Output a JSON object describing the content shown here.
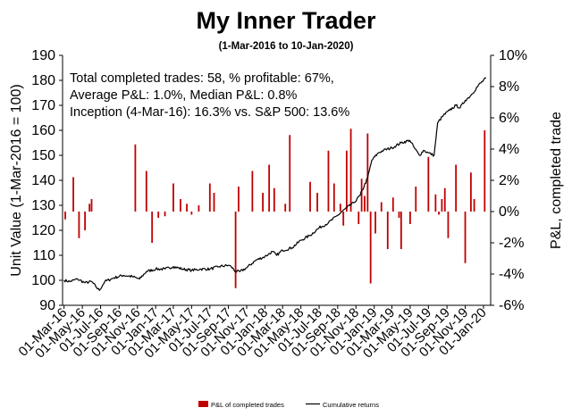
{
  "chart_data": {
    "type": "bar+line",
    "title": "My Inner Trader",
    "subtitle": "(1-Mar-2016 to 10-Jan-2020)",
    "ylabel_left": "Unit Value (1-Mar-2016 = 100)",
    "ylabel_right": "P&L, completed trade",
    "ylim_left": [
      90,
      190
    ],
    "ylim_right": [
      -6,
      10
    ],
    "yticks_left": [
      "90",
      "100",
      "110",
      "120",
      "130",
      "140",
      "150",
      "160",
      "170",
      "180",
      "190"
    ],
    "yticks_right": [
      "-6%",
      "-4%",
      "-2%",
      "0%",
      "2%",
      "4%",
      "6%",
      "8%",
      "10%"
    ],
    "xticks": [
      "01-Mar-16",
      "01-May-16",
      "01-Jul-16",
      "01-Sep-16",
      "01-Nov-16",
      "01-Jan-17",
      "01-Mar-17",
      "01-May-17",
      "01-Jul-17",
      "01-Sep-17",
      "01-Nov-17",
      "01-Jan-18",
      "01-Mar-18",
      "01-May-18",
      "01-Jul-18",
      "01-Sep-18",
      "01-Nov-18",
      "01-Jan-19",
      "01-Mar-19",
      "01-May-19",
      "01-Jul-19",
      "01-Sep-19",
      "01-Nov-19",
      "01-Jan-20"
    ],
    "annotations": [
      "Total completed trades: 58, % profitable: 67%,",
      "Average P&L: 1.0%, Median P&L: 0.8%",
      "Inception (4-Mar-16): 16.3% vs. S&P 500: 13.6%"
    ],
    "legend": {
      "placement": "bottom",
      "items": [
        "P&L of completed trades",
        "Cumulative returns"
      ]
    },
    "colors": {
      "bars": "#c00000",
      "line": "#000000"
    },
    "series": [
      {
        "name": "Cumulative returns",
        "type": "line",
        "points": [
          [
            "2016-03-01",
            100
          ],
          [
            "2016-03-20",
            99.5
          ],
          [
            "2016-04-15",
            100.5
          ],
          [
            "2016-05-10",
            99
          ],
          [
            "2016-06-01",
            99.5
          ],
          [
            "2016-06-15",
            97.5
          ],
          [
            "2016-06-27",
            96
          ],
          [
            "2016-07-15",
            99.5
          ],
          [
            "2016-08-15",
            101
          ],
          [
            "2016-09-15",
            102
          ],
          [
            "2016-10-15",
            101.5
          ],
          [
            "2016-11-08",
            100.5
          ],
          [
            "2016-12-01",
            103.5
          ],
          [
            "2017-01-01",
            104.5
          ],
          [
            "2017-02-01",
            104.5
          ],
          [
            "2017-03-01",
            105.5
          ],
          [
            "2017-04-01",
            104.5
          ],
          [
            "2017-05-01",
            104
          ],
          [
            "2017-06-01",
            104.5
          ],
          [
            "2017-07-01",
            104.5
          ],
          [
            "2017-08-01",
            105.5
          ],
          [
            "2017-09-01",
            106
          ],
          [
            "2017-09-10",
            105.5
          ],
          [
            "2017-09-25",
            103.5
          ],
          [
            "2017-10-10",
            103.5
          ],
          [
            "2017-11-01",
            105
          ],
          [
            "2017-12-01",
            108
          ],
          [
            "2018-01-01",
            109.5
          ],
          [
            "2018-01-26",
            111.5
          ],
          [
            "2018-02-09",
            110
          ],
          [
            "2018-03-01",
            112
          ],
          [
            "2018-04-01",
            113
          ],
          [
            "2018-05-01",
            116
          ],
          [
            "2018-06-01",
            118
          ],
          [
            "2018-07-01",
            121
          ],
          [
            "2018-08-01",
            123
          ],
          [
            "2018-09-01",
            126
          ],
          [
            "2018-10-01",
            129
          ],
          [
            "2018-10-25",
            131
          ],
          [
            "2018-11-15",
            134
          ],
          [
            "2018-12-10",
            141
          ],
          [
            "2018-12-24",
            148
          ],
          [
            "2019-01-15",
            151
          ],
          [
            "2019-02-01",
            152
          ],
          [
            "2019-03-01",
            153
          ],
          [
            "2019-04-01",
            155
          ],
          [
            "2019-04-30",
            156
          ],
          [
            "2019-05-15",
            153
          ],
          [
            "2019-06-01",
            150
          ],
          [
            "2019-06-15",
            152
          ],
          [
            "2019-07-01",
            151
          ],
          [
            "2019-07-20",
            150
          ],
          [
            "2019-08-01",
            163
          ],
          [
            "2019-08-20",
            166
          ],
          [
            "2019-09-10",
            168
          ],
          [
            "2019-10-01",
            170
          ],
          [
            "2019-10-15",
            169
          ],
          [
            "2019-11-01",
            172
          ],
          [
            "2019-11-20",
            174
          ],
          [
            "2019-12-15",
            178
          ],
          [
            "2020-01-10",
            181
          ]
        ]
      },
      {
        "name": "P&L of completed trades",
        "type": "bar",
        "points": [
          [
            "2016-03-05",
            -0.5
          ],
          [
            "2016-04-01",
            2.2
          ],
          [
            "2016-04-20",
            -1.7
          ],
          [
            "2016-05-10",
            -1.2
          ],
          [
            "2016-05-25",
            0.5
          ],
          [
            "2016-06-01",
            0.8
          ],
          [
            "2016-10-25",
            4.3
          ],
          [
            "2016-12-01",
            2.6
          ],
          [
            "2016-12-20",
            -2.0
          ],
          [
            "2017-01-10",
            -0.4
          ],
          [
            "2017-02-01",
            -0.3
          ],
          [
            "2017-03-01",
            1.8
          ],
          [
            "2017-03-25",
            0.8
          ],
          [
            "2017-04-15",
            0.5
          ],
          [
            "2017-05-01",
            -0.2
          ],
          [
            "2017-05-25",
            0.4
          ],
          [
            "2017-07-01",
            1.8
          ],
          [
            "2017-07-15",
            1.2
          ],
          [
            "2017-09-25",
            -4.9
          ],
          [
            "2017-10-05",
            1.6
          ],
          [
            "2017-11-20",
            2.6
          ],
          [
            "2017-12-25",
            1.2
          ],
          [
            "2018-01-15",
            3.0
          ],
          [
            "2018-02-01",
            1.5
          ],
          [
            "2018-03-10",
            0.5
          ],
          [
            "2018-03-25",
            4.9
          ],
          [
            "2018-06-01",
            1.9
          ],
          [
            "2018-06-25",
            1.2
          ],
          [
            "2018-08-01",
            3.9
          ],
          [
            "2018-08-20",
            1.8
          ],
          [
            "2018-09-10",
            0.5
          ],
          [
            "2018-09-20",
            -0.9
          ],
          [
            "2018-10-01",
            3.9
          ],
          [
            "2018-10-15",
            5.3
          ],
          [
            "2018-11-10",
            -0.8
          ],
          [
            "2018-11-20",
            2.1
          ],
          [
            "2018-11-30",
            1.0
          ],
          [
            "2018-12-10",
            5.0
          ],
          [
            "2018-12-20",
            -4.6
          ],
          [
            "2019-01-05",
            -1.4
          ],
          [
            "2019-01-25",
            0.6
          ],
          [
            "2019-02-15",
            -2.4
          ],
          [
            "2019-03-05",
            0.9
          ],
          [
            "2019-03-25",
            -0.4
          ],
          [
            "2019-04-01",
            -2.4
          ],
          [
            "2019-05-01",
            -0.8
          ],
          [
            "2019-05-20",
            1.6
          ],
          [
            "2019-07-01",
            3.5
          ],
          [
            "2019-07-25",
            1.1
          ],
          [
            "2019-08-05",
            -0.2
          ],
          [
            "2019-08-15",
            0.8
          ],
          [
            "2019-08-25",
            1.5
          ],
          [
            "2019-09-05",
            -1.7
          ],
          [
            "2019-10-01",
            3.0
          ],
          [
            "2019-11-01",
            -3.3
          ],
          [
            "2019-11-20",
            2.5
          ],
          [
            "2019-12-01",
            0.8
          ],
          [
            "2020-01-05",
            5.2
          ]
        ]
      }
    ]
  }
}
